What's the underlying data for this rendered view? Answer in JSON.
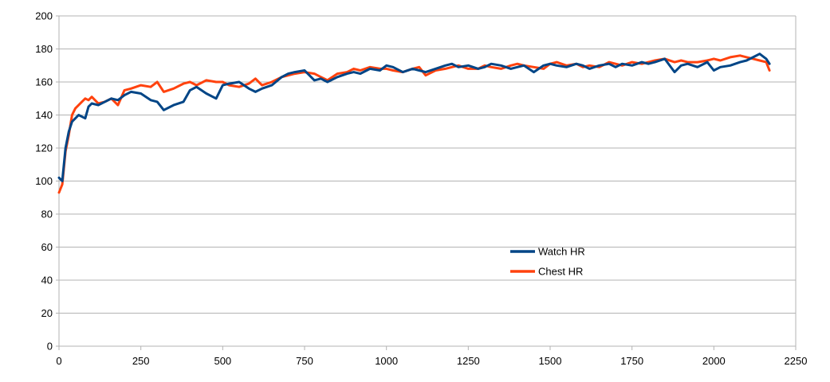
{
  "chart_data": {
    "type": "line",
    "title": "",
    "xlabel": "",
    "ylabel": "",
    "xlim": [
      0,
      2250
    ],
    "ylim": [
      0,
      200
    ],
    "x_ticks": [
      "0",
      "250",
      "500",
      "750",
      "1000",
      "1250",
      "1500",
      "1750",
      "2000",
      "2250"
    ],
    "y_ticks": [
      "0",
      "20",
      "40",
      "60",
      "80",
      "100",
      "120",
      "140",
      "160",
      "180",
      "200"
    ],
    "grid": "horizontal",
    "legend_position": "center-right",
    "series": [
      {
        "name": "Watch HR",
        "color": "#004586",
        "x": [
          0,
          10,
          20,
          30,
          40,
          50,
          60,
          70,
          80,
          90,
          100,
          120,
          140,
          160,
          180,
          200,
          220,
          250,
          280,
          300,
          320,
          350,
          380,
          400,
          420,
          450,
          480,
          500,
          520,
          550,
          580,
          600,
          620,
          650,
          680,
          700,
          720,
          750,
          780,
          800,
          820,
          850,
          880,
          900,
          920,
          950,
          980,
          1000,
          1020,
          1050,
          1080,
          1100,
          1120,
          1150,
          1180,
          1200,
          1220,
          1250,
          1280,
          1300,
          1320,
          1350,
          1380,
          1400,
          1420,
          1450,
          1480,
          1500,
          1520,
          1550,
          1580,
          1600,
          1620,
          1650,
          1680,
          1700,
          1720,
          1750,
          1780,
          1800,
          1820,
          1850,
          1880,
          1900,
          1920,
          1950,
          1980,
          2000,
          2020,
          2050,
          2080,
          2100,
          2120,
          2140,
          2160,
          2170
        ],
        "values": [
          102,
          100,
          120,
          130,
          136,
          138,
          140,
          139,
          138,
          145,
          147,
          146,
          148,
          150,
          149,
          152,
          154,
          153,
          149,
          148,
          143,
          146,
          148,
          155,
          157,
          153,
          150,
          158,
          159,
          160,
          156,
          154,
          156,
          158,
          163,
          165,
          166,
          167,
          161,
          162,
          160,
          163,
          165,
          166,
          165,
          168,
          167,
          170,
          169,
          166,
          168,
          167,
          166,
          168,
          170,
          171,
          169,
          170,
          168,
          169,
          171,
          170,
          168,
          169,
          170,
          166,
          170,
          171,
          170,
          169,
          171,
          170,
          168,
          170,
          171,
          169,
          171,
          170,
          172,
          171,
          172,
          174,
          166,
          170,
          171,
          169,
          172,
          167,
          169,
          170,
          172,
          173,
          175,
          177,
          174,
          171
        ]
      },
      {
        "name": "Chest HR",
        "color": "#ff420e",
        "x": [
          0,
          10,
          20,
          30,
          40,
          50,
          60,
          70,
          80,
          90,
          100,
          120,
          140,
          160,
          180,
          200,
          220,
          250,
          280,
          300,
          320,
          350,
          380,
          400,
          420,
          450,
          480,
          500,
          520,
          550,
          580,
          600,
          620,
          650,
          680,
          700,
          720,
          750,
          780,
          800,
          820,
          850,
          880,
          900,
          920,
          950,
          980,
          1000,
          1020,
          1050,
          1080,
          1100,
          1120,
          1150,
          1180,
          1200,
          1220,
          1250,
          1280,
          1300,
          1320,
          1350,
          1380,
          1400,
          1420,
          1450,
          1480,
          1500,
          1520,
          1550,
          1580,
          1600,
          1620,
          1650,
          1680,
          1700,
          1720,
          1750,
          1780,
          1800,
          1820,
          1850,
          1880,
          1900,
          1920,
          1950,
          1980,
          2000,
          2020,
          2050,
          2080,
          2100,
          2120,
          2140,
          2160,
          2170
        ],
        "values": [
          93,
          98,
          118,
          128,
          140,
          144,
          146,
          148,
          150,
          149,
          151,
          147,
          148,
          150,
          146,
          155,
          156,
          158,
          157,
          160,
          154,
          156,
          159,
          160,
          158,
          161,
          160,
          160,
          158,
          157,
          159,
          162,
          158,
          160,
          163,
          164,
          165,
          166,
          165,
          163,
          161,
          165,
          166,
          168,
          167,
          169,
          168,
          168,
          167,
          166,
          168,
          169,
          164,
          167,
          168,
          169,
          170,
          168,
          168,
          170,
          169,
          168,
          170,
          171,
          170,
          169,
          168,
          171,
          172,
          170,
          171,
          169,
          170,
          169,
          172,
          171,
          170,
          172,
          171,
          172,
          173,
          174,
          172,
          173,
          172,
          172,
          173,
          174,
          173,
          175,
          176,
          175,
          174,
          173,
          172,
          167
        ]
      }
    ]
  }
}
